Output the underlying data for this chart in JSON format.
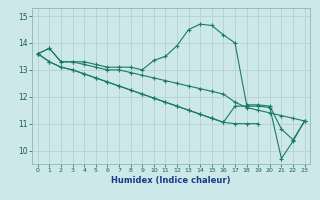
{
  "title": "",
  "xlabel": "Humidex (Indice chaleur)",
  "bg_color": "#cce8e8",
  "grid_color": "#b8d4d4",
  "line_color": "#1a7a6a",
  "x_ticks": [
    0,
    1,
    2,
    3,
    4,
    5,
    6,
    7,
    8,
    9,
    10,
    11,
    12,
    13,
    14,
    15,
    16,
    17,
    18,
    19,
    20,
    21,
    22,
    23
  ],
  "y_ticks": [
    10,
    11,
    12,
    13,
    14,
    15
  ],
  "ylim": [
    9.5,
    15.3
  ],
  "xlim": [
    -0.5,
    23.5
  ],
  "series": [
    [
      13.6,
      13.8,
      13.3,
      13.3,
      13.3,
      13.2,
      13.1,
      13.1,
      13.1,
      13.0,
      13.35,
      13.5,
      13.9,
      14.5,
      14.7,
      14.65,
      14.3,
      14.0,
      11.7,
      11.7,
      11.65,
      10.8,
      10.4,
      11.1
    ],
    [
      13.6,
      13.8,
      13.3,
      13.3,
      13.2,
      13.1,
      13.0,
      13.0,
      12.9,
      12.8,
      12.7,
      12.6,
      12.5,
      12.4,
      12.3,
      12.2,
      12.1,
      11.8,
      11.6,
      11.5,
      11.4,
      11.3,
      11.2,
      11.1
    ],
    [
      13.6,
      13.3,
      13.1,
      13.0,
      12.85,
      12.7,
      12.55,
      12.4,
      12.25,
      12.1,
      11.95,
      11.8,
      11.65,
      11.5,
      11.35,
      11.2,
      11.05,
      11.0,
      11.0,
      11.0,
      null,
      null,
      null,
      null
    ],
    [
      13.6,
      13.3,
      13.1,
      13.0,
      12.85,
      12.7,
      12.55,
      12.4,
      12.25,
      12.1,
      11.95,
      11.8,
      11.65,
      11.5,
      11.35,
      11.2,
      11.05,
      11.65,
      11.65,
      11.65,
      11.6,
      9.7,
      10.35,
      11.1
    ]
  ]
}
